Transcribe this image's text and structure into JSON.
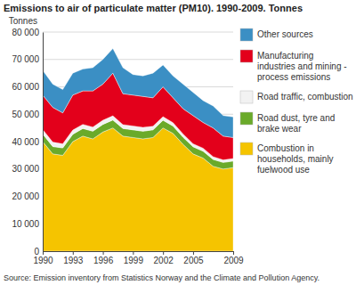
{
  "chart_data": {
    "type": "area",
    "stacked": true,
    "title": "Emissions to air of particulate matter (PM10). 1990-2009. Tonnes",
    "y_label": "Tonnes",
    "source": "Source: Emission inventory from Statistics Norway and the Climate and Pollution Agency.",
    "x": [
      1990,
      1991,
      1992,
      1993,
      1994,
      1995,
      1996,
      1997,
      1998,
      1999,
      2000,
      2001,
      2002,
      2003,
      2004,
      2005,
      2006,
      2007,
      2008,
      2009
    ],
    "xlim": [
      1990,
      2009
    ],
    "xticks": [
      1990,
      1993,
      1996,
      1999,
      2002,
      2005,
      2009
    ],
    "ylim": [
      0,
      80000
    ],
    "yticks": [
      {
        "value": 0,
        "label": "0"
      },
      {
        "value": 10000,
        "label": "10 000"
      },
      {
        "value": 20000,
        "label": "20 000"
      },
      {
        "value": 30000,
        "label": "30 000"
      },
      {
        "value": 40000,
        "label": "40 000"
      },
      {
        "value": 50000,
        "label": "50 000"
      },
      {
        "value": 60000,
        "label": "60 000"
      },
      {
        "value": 70000,
        "label": "70 000"
      },
      {
        "value": 80000,
        "label": "80 000"
      }
    ],
    "grid": true,
    "legend": "right",
    "series": [
      {
        "name": "Combustion in households, mainly fuelwood use",
        "color": "#f5c400",
        "values": [
          40000,
          35500,
          35000,
          40000,
          42000,
          41000,
          43500,
          45000,
          42000,
          41500,
          41000,
          41500,
          45000,
          43000,
          39000,
          35500,
          34000,
          31000,
          30000,
          30500
        ]
      },
      {
        "name": "Road dust, tyre and brake wear",
        "color": "#6aaa2a",
        "values": [
          2800,
          2700,
          2700,
          2700,
          2800,
          2800,
          2800,
          2900,
          2800,
          2800,
          2800,
          2800,
          2800,
          2700,
          2600,
          2600,
          2500,
          2500,
          2400,
          2400
        ]
      },
      {
        "name": "Road traffic, combustion",
        "color": "#f2f2f2",
        "values": [
          1600,
          1600,
          1500,
          1500,
          1500,
          1500,
          1500,
          1500,
          1400,
          1400,
          1400,
          1300,
          1300,
          1200,
          1200,
          1100,
          1100,
          1000,
          900,
          900
        ]
      },
      {
        "name": "Manufacturing industries and mining - process emissions",
        "color": "#e3001b",
        "values": [
          12600,
          12700,
          11300,
          12800,
          12200,
          13200,
          13200,
          15600,
          11300,
          11300,
          11300,
          10400,
          10900,
          9100,
          9200,
          10300,
          9400,
          10500,
          8700,
          7700
        ]
      },
      {
        "name": "Other sources",
        "color": "#3b8fc4",
        "values": [
          9000,
          8500,
          8500,
          8000,
          8000,
          8500,
          9000,
          9000,
          9500,
          7500,
          7500,
          9000,
          8000,
          8000,
          9000,
          8500,
          8000,
          8000,
          7500,
          7500
        ]
      }
    ]
  }
}
